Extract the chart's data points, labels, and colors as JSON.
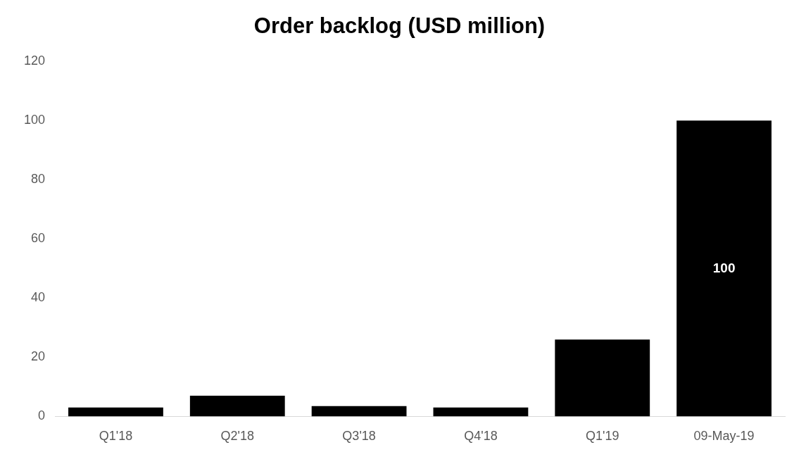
{
  "chart_data": {
    "type": "bar",
    "title": "Order backlog (USD million)",
    "categories": [
      "Q1'18",
      "Q2'18",
      "Q3'18",
      "Q4'18",
      "Q1'19",
      "09-May-19"
    ],
    "values": [
      3,
      7,
      3.5,
      3,
      26,
      100
    ],
    "value_labels": [
      null,
      null,
      null,
      null,
      null,
      "100"
    ],
    "color": "#000000",
    "ylim": [
      0,
      120
    ],
    "yticks": [
      0,
      20,
      40,
      60,
      80,
      100,
      120
    ],
    "grid": false,
    "legend": false
  }
}
